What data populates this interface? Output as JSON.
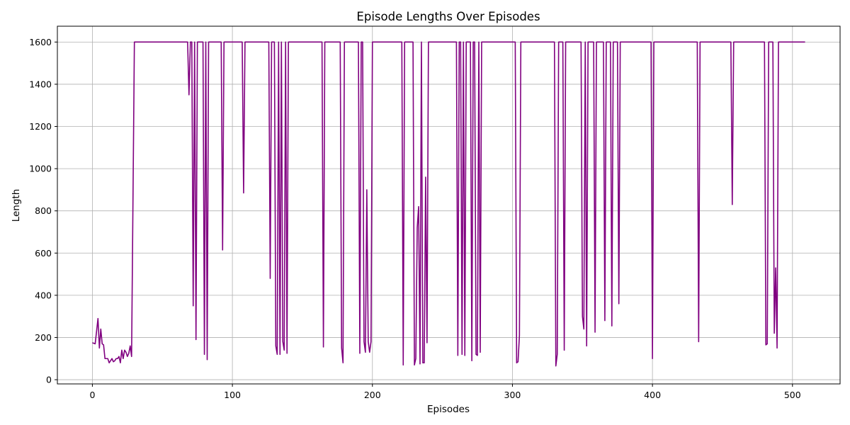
{
  "chart_data": {
    "type": "line",
    "title": "Episode Lengths Over Episodes",
    "xlabel": "Episodes",
    "ylabel": "Length",
    "xlim": [
      -25,
      534
    ],
    "ylim": [
      -20,
      1675
    ],
    "grid": true,
    "x_ticks": [
      0,
      100,
      200,
      300,
      400,
      500
    ],
    "y_ticks": [
      0,
      200,
      400,
      600,
      800,
      1000,
      1200,
      1400,
      1600
    ],
    "colors": {
      "line": "#800080",
      "grid": "#b0b0b0"
    },
    "series": [
      {
        "points": [
          [
            0,
            175
          ],
          [
            2,
            170
          ],
          [
            4,
            290
          ],
          [
            5,
            150
          ],
          [
            6,
            240
          ],
          [
            7,
            170
          ],
          [
            8,
            165
          ],
          [
            9,
            100
          ],
          [
            10,
            100
          ],
          [
            11,
            100
          ],
          [
            12,
            80
          ],
          [
            13,
            90
          ],
          [
            14,
            100
          ],
          [
            15,
            85
          ],
          [
            16,
            90
          ],
          [
            17,
            100
          ],
          [
            18,
            100
          ],
          [
            19,
            110
          ],
          [
            20,
            80
          ],
          [
            21,
            140
          ],
          [
            22,
            100
          ],
          [
            23,
            140
          ],
          [
            24,
            130
          ],
          [
            25,
            110
          ],
          [
            26,
            125
          ],
          [
            27,
            160
          ],
          [
            28,
            110
          ],
          [
            30,
            1600
          ],
          [
            68,
            1600
          ],
          [
            69,
            1350
          ],
          [
            70,
            1600
          ],
          [
            71,
            1600
          ],
          [
            72,
            350
          ],
          [
            73,
            1600
          ],
          [
            74,
            190
          ],
          [
            75,
            1600
          ],
          [
            79,
            1600
          ],
          [
            80,
            120
          ],
          [
            81,
            1600
          ],
          [
            82,
            95
          ],
          [
            83,
            1600
          ],
          [
            92,
            1600
          ],
          [
            93,
            615
          ],
          [
            94,
            1600
          ],
          [
            107,
            1600
          ],
          [
            108,
            885
          ],
          [
            109,
            1600
          ],
          [
            126,
            1600
          ],
          [
            127,
            480
          ],
          [
            128,
            1600
          ],
          [
            130,
            1600
          ],
          [
            131,
            160
          ],
          [
            132,
            120
          ],
          [
            133,
            1600
          ],
          [
            134,
            120
          ],
          [
            135,
            1600
          ],
          [
            136,
            180
          ],
          [
            137,
            140
          ],
          [
            138,
            1600
          ],
          [
            139,
            125
          ],
          [
            140,
            1600
          ],
          [
            164,
            1600
          ],
          [
            165,
            155
          ],
          [
            166,
            1600
          ],
          [
            177,
            1600
          ],
          [
            178,
            150
          ],
          [
            179,
            80
          ],
          [
            180,
            1600
          ],
          [
            190,
            1600
          ],
          [
            191,
            125
          ],
          [
            192,
            1600
          ],
          [
            193,
            1600
          ],
          [
            194,
            180
          ],
          [
            195,
            130
          ],
          [
            196,
            900
          ],
          [
            197,
            180
          ],
          [
            198,
            130
          ],
          [
            199,
            180
          ],
          [
            200,
            1600
          ],
          [
            221,
            1600
          ],
          [
            222,
            70
          ],
          [
            223,
            1600
          ],
          [
            229,
            1600
          ],
          [
            230,
            70
          ],
          [
            231,
            100
          ],
          [
            232,
            720
          ],
          [
            233,
            820
          ],
          [
            234,
            75
          ],
          [
            235,
            1600
          ],
          [
            236,
            80
          ],
          [
            237,
            80
          ],
          [
            238,
            960
          ],
          [
            239,
            175
          ],
          [
            240,
            1600
          ],
          [
            260,
            1600
          ],
          [
            261,
            115
          ],
          [
            262,
            1600
          ],
          [
            263,
            1600
          ],
          [
            264,
            120
          ],
          [
            265,
            1600
          ],
          [
            266,
            115
          ],
          [
            267,
            1600
          ],
          [
            270,
            1600
          ],
          [
            271,
            90
          ],
          [
            272,
            1600
          ],
          [
            273,
            1600
          ],
          [
            274,
            120
          ],
          [
            275,
            115
          ],
          [
            276,
            1600
          ],
          [
            277,
            130
          ],
          [
            278,
            1600
          ],
          [
            302,
            1600
          ],
          [
            303,
            80
          ],
          [
            304,
            85
          ],
          [
            305,
            210
          ],
          [
            306,
            1600
          ],
          [
            330,
            1600
          ],
          [
            331,
            65
          ],
          [
            332,
            120
          ],
          [
            333,
            1600
          ],
          [
            336,
            1600
          ],
          [
            337,
            140
          ],
          [
            338,
            1600
          ],
          [
            349,
            1600
          ],
          [
            350,
            300
          ],
          [
            351,
            240
          ],
          [
            352,
            1600
          ],
          [
            353,
            160
          ],
          [
            354,
            1600
          ],
          [
            358,
            1600
          ],
          [
            359,
            225
          ],
          [
            360,
            1600
          ],
          [
            365,
            1600
          ],
          [
            366,
            280
          ],
          [
            367,
            1600
          ],
          [
            370,
            1600
          ],
          [
            371,
            255
          ],
          [
            372,
            1600
          ],
          [
            375,
            1600
          ],
          [
            376,
            360
          ],
          [
            377,
            1600
          ],
          [
            399,
            1600
          ],
          [
            400,
            100
          ],
          [
            401,
            1600
          ],
          [
            432,
            1600
          ],
          [
            433,
            180
          ],
          [
            434,
            1600
          ],
          [
            456,
            1600
          ],
          [
            457,
            830
          ],
          [
            458,
            1600
          ],
          [
            480,
            1600
          ],
          [
            481,
            165
          ],
          [
            482,
            170
          ],
          [
            483,
            1600
          ],
          [
            486,
            1600
          ],
          [
            487,
            220
          ],
          [
            488,
            530
          ],
          [
            489,
            150
          ],
          [
            490,
            1600
          ],
          [
            509,
            1600
          ]
        ]
      }
    ]
  }
}
